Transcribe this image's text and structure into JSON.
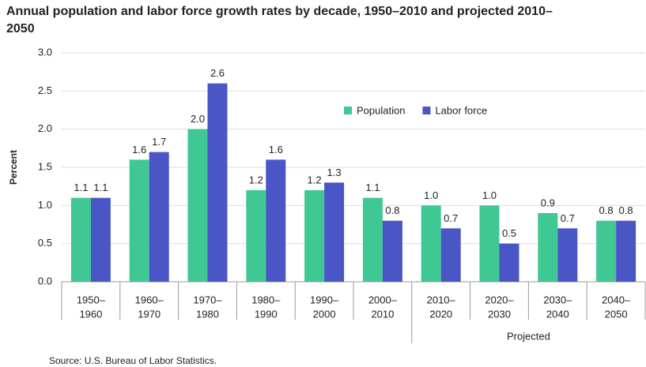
{
  "chart_data": {
    "type": "bar",
    "title": "Annual population and labor force growth rates by decade, 1950–2010 and projected 2010–2050",
    "y_label": "Percent",
    "categories": [
      [
        "1950–",
        "1960"
      ],
      [
        "1960–",
        "1970"
      ],
      [
        "1970–",
        "1980"
      ],
      [
        "1980–",
        "1990"
      ],
      [
        "1990–",
        "2000"
      ],
      [
        "2000–",
        "2010"
      ],
      [
        "2010–",
        "2020"
      ],
      [
        "2020–",
        "2030"
      ],
      [
        "2030–",
        "2040"
      ],
      [
        "2040–",
        "2050"
      ]
    ],
    "series": [
      {
        "name": "Population",
        "color": "#3fc893",
        "values": [
          1.1,
          1.6,
          2.0,
          1.2,
          1.2,
          1.1,
          1.0,
          1.0,
          0.9,
          0.8
        ],
        "value_labels": [
          "1.1",
          "1.6",
          "2.0",
          "1.2",
          "1.2",
          "1.1",
          "1.0",
          "1.0",
          "0.9",
          "0.8"
        ]
      },
      {
        "name": "Labor force",
        "color": "#4a55c6",
        "values": [
          1.1,
          1.7,
          2.6,
          1.6,
          1.3,
          0.8,
          0.7,
          0.5,
          0.7,
          0.8
        ],
        "value_labels": [
          "1.1",
          "1.7",
          "2.6",
          "1.6",
          "1.3",
          "0.8",
          "0.7",
          "0.5",
          "0.7",
          "0.8"
        ]
      }
    ],
    "ylim": [
      0,
      3
    ],
    "yticks": [
      {
        "value": 0,
        "label": "0.0"
      },
      0.5,
      {
        "value": 1,
        "label": "1.0"
      },
      1.5,
      {
        "value": 2,
        "label": "2.0"
      },
      2.5,
      {
        "value": 3,
        "label": "3.0"
      }
    ],
    "grid": true,
    "annotation": "Projected",
    "source": "Source: U.S. Bureau of Labor Statistics."
  }
}
